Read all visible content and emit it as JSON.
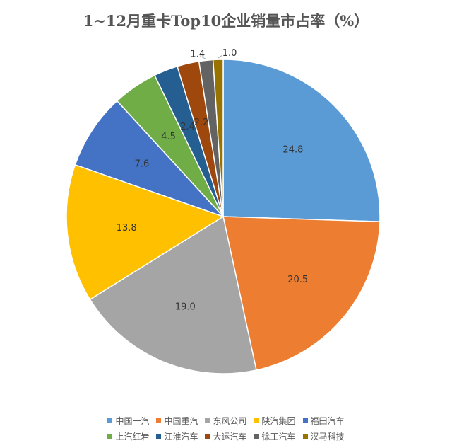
{
  "chart_data": {
    "type": "pie",
    "title": "1~12月重卡Top10企业销量市占率（%）",
    "categories": [
      "中国一汽",
      "中国重汽",
      "东风公司",
      "陕汽集团",
      "福田汽车",
      "上汽红岩",
      "江淮汽车",
      "大运汽车",
      "徐工汽车",
      "汉马科技"
    ],
    "values": [
      24.8,
      20.5,
      19.0,
      13.8,
      7.6,
      4.5,
      2.4,
      2.2,
      1.4,
      1.0
    ],
    "value_labels": [
      "24.8",
      "20.5",
      "19.0",
      "13.8",
      "7.6",
      "4.5",
      "2.4",
      "2.2",
      "1.4",
      "1.0"
    ],
    "colors": [
      "#5B9BD5",
      "#ED7D31",
      "#A5A5A5",
      "#FFC000",
      "#4472C4",
      "#70AD47",
      "#255E91",
      "#9E480E",
      "#636363",
      "#997300"
    ],
    "legend_position": "bottom"
  }
}
